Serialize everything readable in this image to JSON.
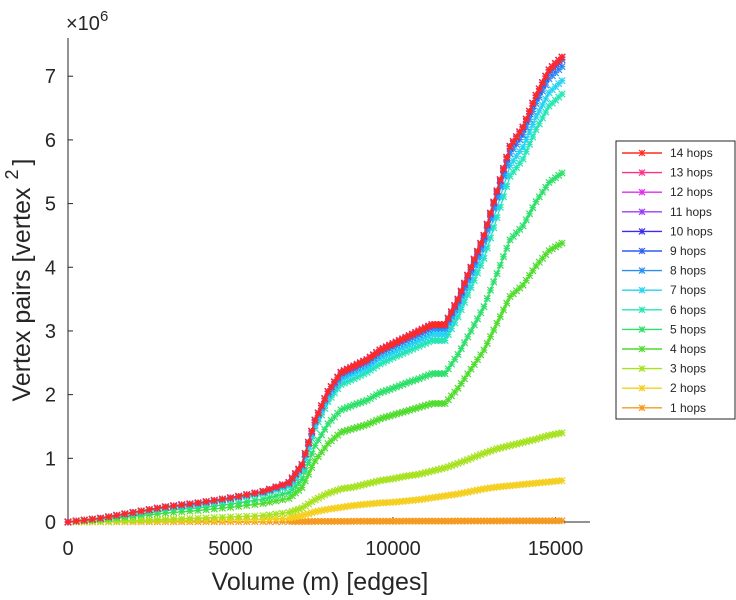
{
  "chart_data": {
    "type": "line",
    "title": "",
    "xlabel": "Volume (m) [edges]",
    "ylabel_main": "Vertex pairs [vertex",
    "ylabel_sup": "2",
    "ylabel_close": "]",
    "y_exponent_base": "×10",
    "y_exponent_power": "6",
    "xlim": [
      0,
      16000
    ],
    "ylim": [
      0,
      7.6
    ],
    "xticks": [
      0,
      5000,
      10000,
      15000
    ],
    "xtick_labels": [
      "0",
      "5000",
      "10000",
      "15000"
    ],
    "yticks": [
      0,
      1,
      2,
      3,
      4,
      5,
      6,
      7
    ],
    "ytick_labels": [
      "0",
      "1",
      "2",
      "3",
      "4",
      "5",
      "6",
      "7"
    ],
    "grid": false,
    "legend_position": "right",
    "x": [
      0,
      1000,
      2000,
      3000,
      4000,
      5000,
      6000,
      6800,
      7200,
      7600,
      8000,
      8400,
      8800,
      9200,
      9600,
      10000,
      10400,
      10800,
      11200,
      11600,
      12000,
      12400,
      12800,
      13200,
      13600,
      14000,
      14400,
      14800,
      15200
    ],
    "series": [
      {
        "name": "14 hops",
        "color": "#ff2a1f",
        "values": [
          0,
          0.06,
          0.15,
          0.24,
          0.3,
          0.38,
          0.48,
          0.62,
          0.9,
          1.6,
          2.05,
          2.35,
          2.45,
          2.55,
          2.7,
          2.8,
          2.9,
          3.0,
          3.1,
          3.1,
          3.5,
          4.0,
          4.5,
          5.2,
          5.9,
          6.2,
          6.7,
          7.1,
          7.3
        ]
      },
      {
        "name": "13 hops",
        "color": "#ff2f88",
        "values": [
          0,
          0.06,
          0.15,
          0.24,
          0.3,
          0.38,
          0.48,
          0.62,
          0.9,
          1.6,
          2.05,
          2.35,
          2.45,
          2.55,
          2.7,
          2.8,
          2.9,
          3.0,
          3.1,
          3.1,
          3.5,
          4.0,
          4.5,
          5.2,
          5.9,
          6.2,
          6.7,
          7.1,
          7.3
        ]
      },
      {
        "name": "12 hops",
        "color": "#e12cf0",
        "values": [
          0,
          0.06,
          0.15,
          0.24,
          0.3,
          0.38,
          0.48,
          0.62,
          0.9,
          1.6,
          2.05,
          2.35,
          2.45,
          2.55,
          2.7,
          2.8,
          2.9,
          3.0,
          3.1,
          3.1,
          3.5,
          4.0,
          4.5,
          5.2,
          5.9,
          6.2,
          6.7,
          7.1,
          7.3
        ]
      },
      {
        "name": "11 hops",
        "color": "#9c3cf5",
        "values": [
          0,
          0.06,
          0.15,
          0.24,
          0.3,
          0.38,
          0.48,
          0.62,
          0.9,
          1.6,
          2.05,
          2.35,
          2.45,
          2.55,
          2.7,
          2.8,
          2.9,
          3.0,
          3.1,
          3.1,
          3.5,
          4.0,
          4.5,
          5.2,
          5.9,
          6.2,
          6.7,
          7.1,
          7.3
        ]
      },
      {
        "name": "10 hops",
        "color": "#3b2ef0",
        "values": [
          0,
          0.06,
          0.15,
          0.24,
          0.3,
          0.38,
          0.48,
          0.62,
          0.9,
          1.6,
          2.05,
          2.35,
          2.45,
          2.55,
          2.7,
          2.8,
          2.9,
          3.0,
          3.1,
          3.1,
          3.5,
          4.0,
          4.5,
          5.2,
          5.9,
          6.2,
          6.7,
          7.1,
          7.3
        ]
      },
      {
        "name": "9 hops",
        "color": "#2c5ff0",
        "values": [
          0,
          0.06,
          0.15,
          0.24,
          0.3,
          0.38,
          0.48,
          0.62,
          0.9,
          1.6,
          2.05,
          2.34,
          2.44,
          2.54,
          2.69,
          2.79,
          2.89,
          2.99,
          3.09,
          3.09,
          3.48,
          3.98,
          4.48,
          5.18,
          5.87,
          6.17,
          6.66,
          7.06,
          7.26
        ]
      },
      {
        "name": "8 hops",
        "color": "#2a8ef5",
        "values": [
          0,
          0.06,
          0.15,
          0.23,
          0.29,
          0.37,
          0.47,
          0.6,
          0.88,
          1.57,
          2.01,
          2.3,
          2.4,
          2.5,
          2.65,
          2.75,
          2.85,
          2.94,
          3.04,
          3.04,
          3.43,
          3.92,
          4.41,
          5.1,
          5.78,
          6.08,
          6.57,
          6.96,
          7.15
        ]
      },
      {
        "name": "7 hops",
        "color": "#27d3f2",
        "values": [
          0,
          0.06,
          0.14,
          0.23,
          0.28,
          0.36,
          0.46,
          0.58,
          0.85,
          1.52,
          1.95,
          2.23,
          2.33,
          2.42,
          2.57,
          2.66,
          2.76,
          2.85,
          2.95,
          2.95,
          3.33,
          3.8,
          4.28,
          4.94,
          5.6,
          5.89,
          6.36,
          6.74,
          6.93
        ]
      },
      {
        "name": "6 hops",
        "color": "#26e6b4",
        "values": [
          0,
          0.05,
          0.14,
          0.22,
          0.27,
          0.35,
          0.44,
          0.56,
          0.82,
          1.47,
          1.89,
          2.16,
          2.25,
          2.35,
          2.48,
          2.58,
          2.67,
          2.76,
          2.85,
          2.85,
          3.22,
          3.68,
          4.14,
          4.78,
          5.43,
          5.7,
          6.16,
          6.53,
          6.72
        ]
      },
      {
        "name": "5 hops",
        "color": "#2de06a",
        "values": [
          0,
          0.05,
          0.11,
          0.18,
          0.22,
          0.28,
          0.36,
          0.46,
          0.67,
          1.2,
          1.54,
          1.76,
          1.84,
          1.91,
          2.03,
          2.1,
          2.18,
          2.25,
          2.33,
          2.33,
          2.63,
          3.0,
          3.38,
          3.9,
          4.43,
          4.65,
          5.03,
          5.33,
          5.48
        ]
      },
      {
        "name": "4 hops",
        "color": "#4fdc2e",
        "values": [
          0,
          0.04,
          0.09,
          0.14,
          0.18,
          0.23,
          0.29,
          0.37,
          0.54,
          0.96,
          1.23,
          1.41,
          1.47,
          1.53,
          1.62,
          1.68,
          1.74,
          1.8,
          1.86,
          1.86,
          2.1,
          2.4,
          2.7,
          3.12,
          3.54,
          3.72,
          4.02,
          4.26,
          4.38
        ]
      },
      {
        "name": "3 hops",
        "color": "#a6e21f",
        "values": [
          0,
          0.01,
          0.02,
          0.04,
          0.06,
          0.08,
          0.1,
          0.15,
          0.22,
          0.35,
          0.45,
          0.52,
          0.55,
          0.6,
          0.65,
          0.68,
          0.72,
          0.75,
          0.8,
          0.85,
          0.92,
          1.0,
          1.08,
          1.15,
          1.2,
          1.25,
          1.3,
          1.36,
          1.4
        ]
      },
      {
        "name": "2 hops",
        "color": "#f5cf1f",
        "values": [
          0,
          0.005,
          0.01,
          0.02,
          0.025,
          0.03,
          0.04,
          0.06,
          0.1,
          0.16,
          0.2,
          0.23,
          0.26,
          0.28,
          0.3,
          0.31,
          0.33,
          0.35,
          0.38,
          0.41,
          0.44,
          0.48,
          0.52,
          0.55,
          0.57,
          0.59,
          0.61,
          0.63,
          0.65
        ]
      },
      {
        "name": "1 hops",
        "color": "#f59a1f",
        "values": [
          0,
          0.001,
          0.002,
          0.003,
          0.004,
          0.005,
          0.006,
          0.007,
          0.008,
          0.009,
          0.01,
          0.01,
          0.011,
          0.011,
          0.012,
          0.012,
          0.013,
          0.013,
          0.014,
          0.014,
          0.015,
          0.015,
          0.016,
          0.016,
          0.017,
          0.017,
          0.018,
          0.018,
          0.019
        ]
      }
    ]
  }
}
